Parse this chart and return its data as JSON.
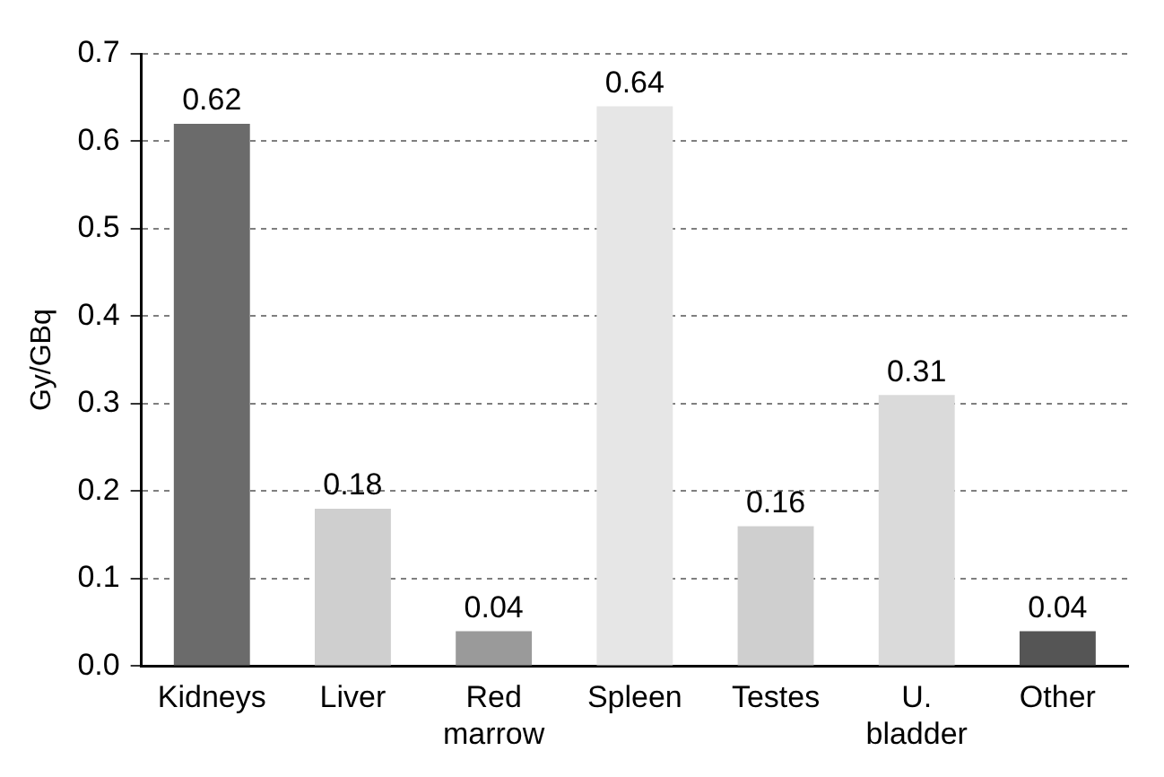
{
  "chart_data": {
    "type": "bar",
    "ylabel": "Gy/GBq",
    "categories": [
      "Kidneys",
      "Liver",
      "Red marrow",
      "Spleen",
      "Testes",
      "U. bladder",
      "Other"
    ],
    "values": [
      0.62,
      0.18,
      0.04,
      0.64,
      0.16,
      0.31,
      0.04
    ],
    "colors": [
      "#6b6b6b",
      "#cfcfcf",
      "#9a9a9a",
      "#e6e6e6",
      "#cfcfcf",
      "#dadada",
      "#555555"
    ],
    "ylim": [
      0,
      0.7
    ],
    "yticks": [
      {
        "value": 0,
        "label": "0.0"
      },
      0.1,
      0.2,
      0.3,
      0.4,
      0.5,
      0.6,
      0.7
    ],
    "grid": "y",
    "data_labels": true,
    "legend": false
  }
}
